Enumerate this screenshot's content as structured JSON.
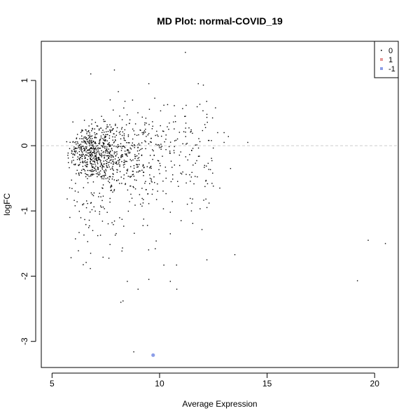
{
  "chart_data": {
    "type": "scatter",
    "title": "MD Plot: normal-COVID_19",
    "xlabel": "Average Expression",
    "ylabel": "logFC",
    "xlim": [
      4.5,
      21.1
    ],
    "ylim": [
      -3.4,
      1.6
    ],
    "xticks": [
      5,
      10,
      15,
      20
    ],
    "yticks": [
      -3,
      -2,
      -1,
      0,
      1
    ],
    "grid": false,
    "reference_line": {
      "y": 0,
      "style": "dashed",
      "color": "#cccccc"
    },
    "legend": {
      "position": "top-right",
      "entries": [
        {
          "label": "0",
          "color": "#000000"
        },
        {
          "label": "1",
          "color": "#e69999"
        },
        {
          "label": "-1",
          "color": "#8c9ee8"
        }
      ]
    },
    "series": [
      {
        "name": "0",
        "color": "#000000",
        "outliers": [
          [
            11.2,
            1.43
          ],
          [
            7.9,
            1.16
          ],
          [
            6.8,
            1.1
          ],
          [
            11.8,
            0.95
          ],
          [
            9.5,
            0.95
          ],
          [
            12.6,
            0.58
          ],
          [
            10.2,
            0.62
          ],
          [
            11.2,
            0.45
          ],
          [
            12.2,
            0.48
          ],
          [
            12.7,
            0.2
          ],
          [
            13.0,
            0.2
          ],
          [
            13.2,
            0.14
          ],
          [
            13.0,
            0.05
          ],
          [
            14.1,
            0.05
          ],
          [
            13.3,
            -0.35
          ],
          [
            12.5,
            -0.62
          ],
          [
            12.8,
            -0.65
          ],
          [
            12.3,
            -0.88
          ],
          [
            11.5,
            -0.88
          ],
          [
            10.5,
            -1.02
          ],
          [
            11.0,
            -1.15
          ],
          [
            10.5,
            -1.35
          ],
          [
            12.2,
            -1.75
          ],
          [
            13.5,
            -1.67
          ],
          [
            9.8,
            -1.58
          ],
          [
            10.2,
            -1.83
          ],
          [
            10.5,
            -2.08
          ],
          [
            10.8,
            -2.2
          ],
          [
            9.0,
            -2.2
          ],
          [
            9.5,
            -2.05
          ],
          [
            8.5,
            -2.08
          ],
          [
            8.2,
            -2.4
          ],
          [
            8.3,
            -2.38
          ],
          [
            8.8,
            -3.16
          ],
          [
            19.7,
            -1.45
          ],
          [
            20.5,
            -1.5
          ],
          [
            19.2,
            -2.07
          ]
        ]
      },
      {
        "name": "-1",
        "color": "#8c9ee8",
        "points": [
          [
            9.7,
            -3.21
          ]
        ]
      }
    ]
  }
}
